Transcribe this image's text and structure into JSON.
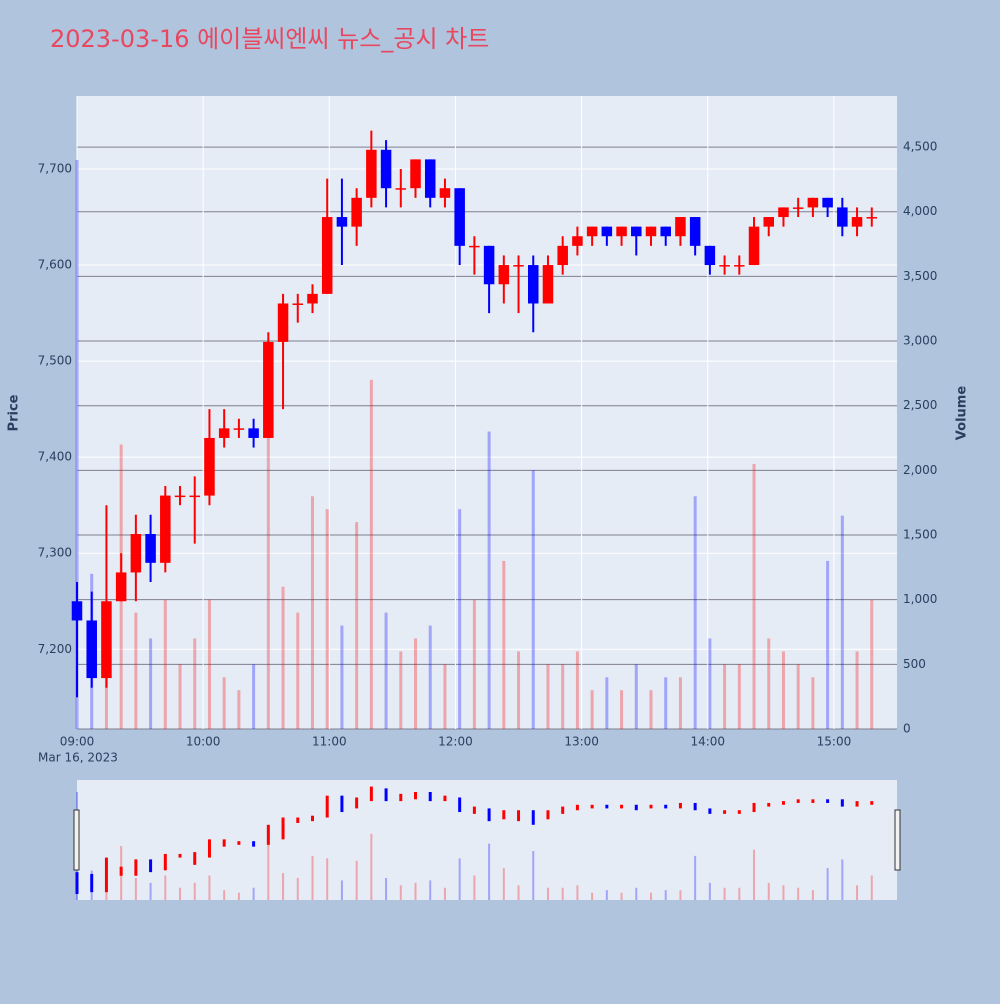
{
  "chart_data": {
    "type": "candlestick",
    "title": "2023-03-16 에이블씨엔씨 뉴스_공시 차트",
    "date_label": "Mar 16, 2023",
    "y_label": "Price",
    "y2_label": "Volume",
    "x": [
      "09:00",
      "09:07",
      "09:14",
      "09:21",
      "09:28",
      "09:35",
      "09:42",
      "09:49",
      "09:56",
      "10:03",
      "10:10",
      "10:17",
      "10:24",
      "10:31",
      "10:38",
      "10:45",
      "10:52",
      "10:59",
      "11:06",
      "11:13",
      "11:20",
      "11:27",
      "11:34",
      "11:41",
      "11:48",
      "11:55",
      "12:02",
      "12:09",
      "12:16",
      "12:23",
      "12:30",
      "12:37",
      "12:44",
      "12:51",
      "12:58",
      "13:05",
      "13:12",
      "13:19",
      "13:26",
      "13:33",
      "13:40",
      "13:47",
      "13:54",
      "14:01",
      "14:08",
      "14:15",
      "14:22",
      "14:29",
      "14:36",
      "14:43",
      "14:50",
      "14:57",
      "15:04",
      "15:11",
      "15:18"
    ],
    "open": [
      7250,
      7230,
      7170,
      7250,
      7280,
      7320,
      7290,
      7360,
      7360,
      7360,
      7420,
      7430,
      7430,
      7420,
      7520,
      7560,
      7560,
      7570,
      7650,
      7640,
      7670,
      7720,
      7680,
      7680,
      7710,
      7670,
      7680,
      7620,
      7620,
      7580,
      7600,
      7600,
      7560,
      7600,
      7620,
      7630,
      7640,
      7630,
      7640,
      7630,
      7640,
      7630,
      7650,
      7620,
      7600,
      7600,
      7600,
      7640,
      7650,
      7660,
      7660,
      7670,
      7660,
      7640,
      7650
    ],
    "high": [
      7270,
      7260,
      7350,
      7300,
      7340,
      7340,
      7370,
      7370,
      7380,
      7450,
      7450,
      7440,
      7440,
      7530,
      7570,
      7570,
      7580,
      7690,
      7690,
      7680,
      7740,
      7730,
      7700,
      7710,
      7710,
      7690,
      7680,
      7630,
      7620,
      7610,
      7610,
      7610,
      7610,
      7630,
      7640,
      7640,
      7640,
      7640,
      7640,
      7640,
      7640,
      7650,
      7650,
      7620,
      7610,
      7610,
      7650,
      7650,
      7660,
      7670,
      7670,
      7670,
      7670,
      7660,
      7660
    ],
    "low": [
      7150,
      7160,
      7160,
      7250,
      7250,
      7270,
      7280,
      7350,
      7310,
      7350,
      7410,
      7420,
      7410,
      7420,
      7450,
      7540,
      7550,
      7570,
      7600,
      7620,
      7660,
      7660,
      7660,
      7670,
      7660,
      7660,
      7600,
      7590,
      7550,
      7560,
      7550,
      7530,
      7560,
      7590,
      7610,
      7620,
      7620,
      7620,
      7610,
      7620,
      7620,
      7620,
      7610,
      7590,
      7590,
      7590,
      7600,
      7630,
      7640,
      7650,
      7650,
      7650,
      7630,
      7630,
      7640
    ],
    "close": [
      7230,
      7170,
      7250,
      7280,
      7320,
      7290,
      7360,
      7360,
      7360,
      7420,
      7430,
      7430,
      7420,
      7520,
      7560,
      7560,
      7570,
      7650,
      7640,
      7670,
      7720,
      7680,
      7680,
      7710,
      7670,
      7680,
      7620,
      7620,
      7580,
      7600,
      7600,
      7560,
      7600,
      7620,
      7630,
      7640,
      7630,
      7640,
      7630,
      7640,
      7630,
      7650,
      7620,
      7600,
      7600,
      7600,
      7640,
      7650,
      7660,
      7660,
      7670,
      7660,
      7640,
      7650,
      7650
    ],
    "volume": [
      4400,
      1200,
      600,
      2200,
      900,
      700,
      1000,
      500,
      700,
      1000,
      400,
      300,
      500,
      2600,
      1100,
      900,
      1800,
      1700,
      800,
      1600,
      2700,
      900,
      600,
      700,
      800,
      500,
      1700,
      1000,
      2300,
      1300,
      600,
      2000,
      500,
      500,
      600,
      300,
      400,
      300,
      500,
      300,
      400,
      400,
      1800,
      700,
      500,
      500,
      2050,
      700,
      600,
      500,
      400,
      1300,
      1650,
      600,
      1000
    ],
    "increasing_color": "#ff0000",
    "decreasing_color": "#0000ff",
    "xlim": [
      "09:00",
      "15:30"
    ],
    "xticks": [
      "09:00",
      "10:00",
      "11:00",
      "12:00",
      "13:00",
      "14:00",
      "15:00"
    ],
    "ylim": [
      7117,
      7776
    ],
    "yticks": [
      {
        "value": 7200,
        "label": "7,200"
      },
      {
        "value": 7300,
        "label": "7,300"
      },
      {
        "value": 7400,
        "label": "7,400"
      },
      {
        "value": 7500,
        "label": "7,500"
      },
      {
        "value": 7600,
        "label": "7,600"
      },
      {
        "value": 7700,
        "label": "7,700"
      }
    ],
    "y2lim": [
      0,
      4895
    ],
    "y2ticks": [
      0,
      500,
      {
        "value": 1000,
        "label": "1,000"
      },
      {
        "value": 1500,
        "label": "1,500"
      },
      {
        "value": 2000,
        "label": "2,000"
      },
      {
        "value": 2500,
        "label": "2,500"
      },
      {
        "value": 3000,
        "label": "3,000"
      },
      {
        "value": 3500,
        "label": "3,500"
      },
      {
        "value": 4000,
        "label": "4,000"
      },
      {
        "value": 4500,
        "label": "4,500"
      }
    ]
  }
}
